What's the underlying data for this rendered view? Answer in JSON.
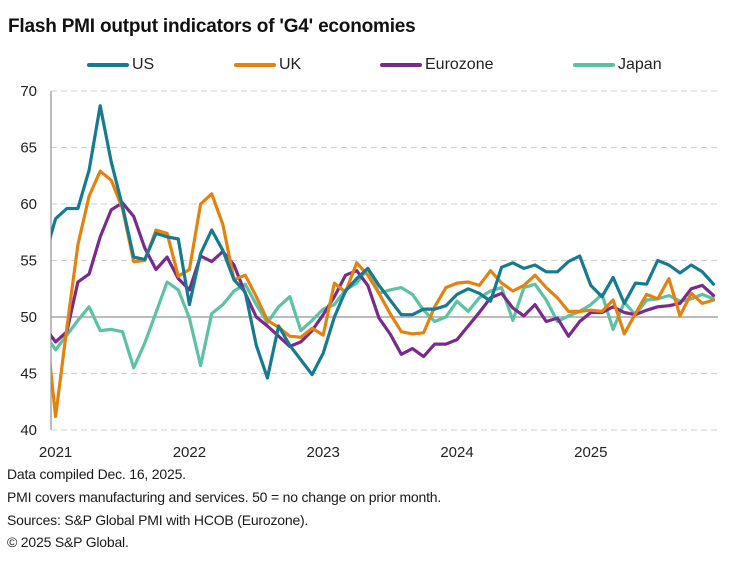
{
  "chart_data": {
    "type": "line",
    "title": "Flash PMI output indicators of 'G4' economies",
    "xlabel": "",
    "ylabel": "",
    "ylim": [
      40,
      70
    ],
    "yticks": [
      40,
      45,
      50,
      55,
      60,
      65,
      70
    ],
    "reference_line": 50,
    "grid": "horizontal dashed",
    "legend_position": "top",
    "x_tick_labels": [
      "2021",
      "2022",
      "2023",
      "2024",
      "2025"
    ],
    "x_start": "Dec 2020",
    "x_frequency": "monthly",
    "x": [
      "2020-12",
      "2021-01",
      "2021-02",
      "2021-03",
      "2021-04",
      "2021-05",
      "2021-06",
      "2021-07",
      "2021-08",
      "2021-09",
      "2021-10",
      "2021-11",
      "2021-12",
      "2022-01",
      "2022-02",
      "2022-03",
      "2022-04",
      "2022-05",
      "2022-06",
      "2022-07",
      "2022-08",
      "2022-09",
      "2022-10",
      "2022-11",
      "2022-12",
      "2023-01",
      "2023-02",
      "2023-03",
      "2023-04",
      "2023-05",
      "2023-06",
      "2023-07",
      "2023-08",
      "2023-09",
      "2023-10",
      "2023-11",
      "2023-12",
      "2024-01",
      "2024-02",
      "2024-03",
      "2024-04",
      "2024-05",
      "2024-06",
      "2024-07",
      "2024-08",
      "2024-09",
      "2024-10",
      "2024-11",
      "2024-12",
      "2025-01",
      "2025-02",
      "2025-03",
      "2025-04",
      "2025-05",
      "2025-06",
      "2025-07",
      "2025-08",
      "2025-09",
      "2025-10",
      "2025-11",
      "2025-12"
    ],
    "series": [
      {
        "name": "US",
        "color": "#167a91",
        "values": [
          55.3,
          58.7,
          59.6,
          59.6,
          63.0,
          68.7,
          63.7,
          59.8,
          55.3,
          55.1,
          57.4,
          57.1,
          56.9,
          51.1,
          55.6,
          57.7,
          55.9,
          53.3,
          52.2,
          47.5,
          44.6,
          49.2,
          47.5,
          46.2,
          44.9,
          46.8,
          50.0,
          52.3,
          53.4,
          54.3,
          52.8,
          51.5,
          50.2,
          50.2,
          50.7,
          50.7,
          51.0,
          52.0,
          52.5,
          52.1,
          51.4,
          54.4,
          54.8,
          54.3,
          54.6,
          54.0,
          54.0,
          54.9,
          55.4,
          52.8,
          51.8,
          53.5,
          51.2,
          53.0,
          52.9,
          55.0,
          54.6,
          53.9,
          54.6,
          54.0,
          52.9
        ]
      },
      {
        "name": "UK",
        "color": "#e5820e",
        "values": [
          50.4,
          41.2,
          49.0,
          56.4,
          60.7,
          62.9,
          62.1,
          59.6,
          54.9,
          55.0,
          57.7,
          57.4,
          53.6,
          54.2,
          60.0,
          60.9,
          58.2,
          53.3,
          53.7,
          51.8,
          49.7,
          49.1,
          48.3,
          48.2,
          49.0,
          48.4,
          53.0,
          52.2,
          54.8,
          53.7,
          52.1,
          50.3,
          48.7,
          48.5,
          48.6,
          50.9,
          52.6,
          53.0,
          53.1,
          52.8,
          54.1,
          53.0,
          52.3,
          52.8,
          53.7,
          52.6,
          51.7,
          50.5,
          50.5,
          50.6,
          50.5,
          51.5,
          48.5,
          50.3,
          52.0,
          51.6,
          53.4,
          50.1,
          52.1,
          51.2,
          51.5
        ]
      },
      {
        "name": "Eurozone",
        "color": "#7a2a8c",
        "values": [
          49.1,
          47.8,
          48.7,
          53.1,
          53.8,
          57.1,
          59.5,
          60.1,
          58.9,
          56.1,
          54.2,
          55.3,
          53.4,
          52.4,
          55.4,
          54.9,
          55.8,
          54.6,
          52.1,
          50.0,
          49.2,
          48.3,
          47.4,
          47.8,
          48.8,
          50.2,
          51.8,
          53.7,
          54.1,
          52.8,
          49.9,
          48.5,
          46.7,
          47.2,
          46.5,
          47.6,
          47.6,
          48.0,
          49.2,
          50.4,
          51.7,
          52.1,
          50.8,
          50.1,
          51.1,
          49.6,
          49.9,
          48.3,
          49.6,
          50.4,
          50.4,
          50.9,
          50.4,
          50.2,
          50.6,
          50.9,
          51.0,
          51.2,
          52.5,
          52.8,
          51.9
        ]
      },
      {
        "name": "Japan",
        "color": "#5cc2a3",
        "values": [
          48.5,
          47.1,
          48.4,
          49.7,
          50.9,
          48.8,
          48.9,
          48.7,
          45.5,
          47.7,
          50.4,
          53.1,
          52.4,
          49.9,
          45.7,
          50.3,
          51.1,
          52.3,
          52.9,
          51.1,
          49.5,
          50.9,
          51.8,
          48.8,
          49.7,
          50.7,
          51.1,
          52.4,
          53.0,
          54.3,
          52.1,
          52.4,
          52.6,
          52.0,
          50.6,
          49.6,
          50.0,
          51.4,
          50.5,
          51.7,
          52.3,
          52.6,
          49.7,
          52.6,
          52.9,
          51.5,
          49.6,
          50.1,
          50.5,
          51.1,
          52.0,
          48.9,
          51.3,
          50.2,
          51.5,
          51.6,
          51.9,
          51.4,
          51.6,
          52.0,
          51.6
        ]
      }
    ]
  },
  "legend": [
    {
      "label": "US",
      "color": "#167a91"
    },
    {
      "label": "UK",
      "color": "#e5820e"
    },
    {
      "label": "Eurozone",
      "color": "#7a2a8c"
    },
    {
      "label": "Japan",
      "color": "#5cc2a3"
    }
  ],
  "footer": {
    "line1": "Data compiled Dec. 16, 2025.",
    "line2": "PMI covers manufacturing and services. 50 = no change on prior month.",
    "line3": "Sources: S&P Global PMI with HCOB (Eurozone).",
    "line4": "© 2025 S&P Global."
  }
}
